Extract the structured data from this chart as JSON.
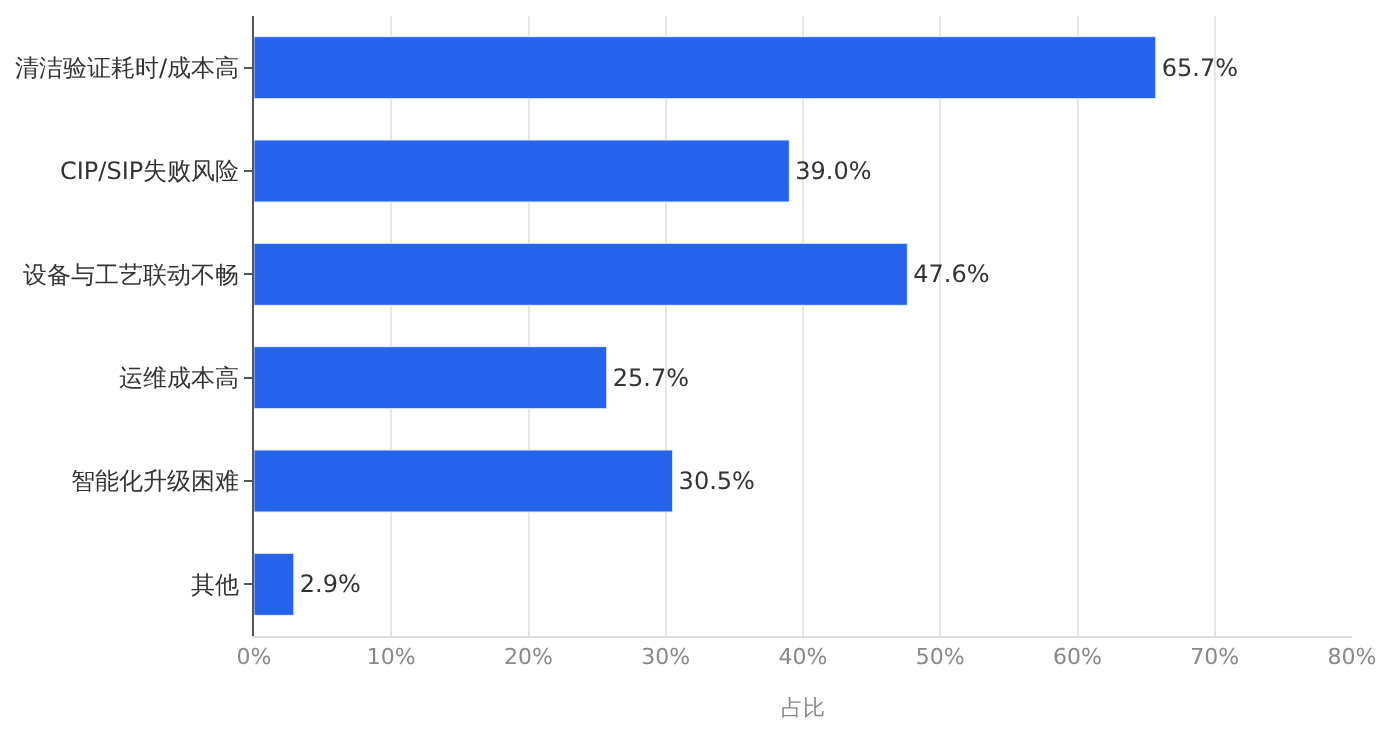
{
  "chart_data": {
    "type": "bar",
    "orientation": "horizontal",
    "xlabel": "占比",
    "categories": [
      "清洁验证耗时/成本高",
      "CIP/SIP失败风险",
      "设备与工艺联动不畅",
      "运维成本高",
      "智能化升级困难",
      "其他"
    ],
    "values": [
      65.7,
      39.0,
      47.6,
      25.7,
      30.5,
      2.9
    ],
    "value_labels": [
      "65.7%",
      "39.0%",
      "47.6%",
      "25.7%",
      "30.5%",
      "2.9%"
    ],
    "color": "#2563eb",
    "xlim": [
      0,
      80
    ],
    "xticks": [
      {
        "value": 0,
        "label": "0%"
      },
      {
        "value": 10,
        "label": "10%"
      },
      {
        "value": 20,
        "label": "20%"
      },
      {
        "value": 30,
        "label": "30%"
      },
      {
        "value": 40,
        "label": "40%"
      },
      {
        "value": 50,
        "label": "50%"
      },
      {
        "value": 60,
        "label": "60%"
      },
      {
        "value": 70,
        "label": "70%"
      },
      {
        "value": 80,
        "label": "80%"
      }
    ],
    "grid": "x"
  }
}
